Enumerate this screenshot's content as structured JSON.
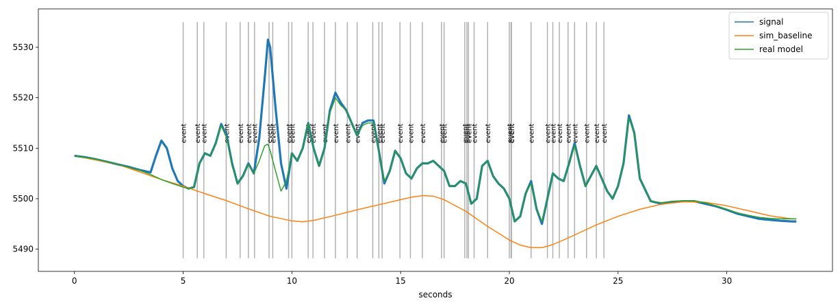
{
  "chart_data": {
    "type": "line",
    "xlabel": "seconds",
    "ylabel": "",
    "xlim": [
      -1.66,
      34.86
    ],
    "ylim": [
      5485.6,
      5537.6
    ],
    "xticks": [
      0,
      5,
      10,
      15,
      20,
      25,
      30
    ],
    "yticks": [
      5490,
      5500,
      5510,
      5520,
      5530
    ],
    "grid": false,
    "legend_position": "top-right",
    "colors": {
      "signal": "#1f77b4",
      "sim_baseline": "#ff7f0e",
      "real model": "#2ca02c",
      "event_line": "#b0b0b0"
    },
    "event_label": "event",
    "event_line_range": [
      5488.2,
      5535.0
    ],
    "event_label_y": 5511.0,
    "events": [
      5.0,
      5.65,
      5.95,
      6.98,
      7.62,
      8.0,
      8.28,
      8.95,
      9.12,
      9.85,
      10.0,
      10.75,
      10.97,
      11.5,
      12.0,
      12.55,
      13.0,
      13.72,
      14.0,
      14.15,
      14.97,
      15.45,
      16.0,
      16.88,
      17.0,
      17.95,
      18.05,
      18.12,
      18.38,
      19.0,
      20.0,
      20.08,
      20.1,
      21.0,
      21.75,
      22.0,
      22.3,
      22.7,
      23.0,
      23.55,
      24.0,
      24.35
    ],
    "series": [
      {
        "name": "signal",
        "x": [
          0.0,
          0.5,
          1.0,
          1.5,
          2.0,
          2.5,
          3.0,
          3.5,
          3.75,
          4.0,
          4.25,
          4.5,
          4.75,
          5.0,
          5.25,
          5.5,
          5.75,
          6.0,
          6.25,
          6.5,
          6.75,
          7.0,
          7.25,
          7.5,
          7.75,
          8.0,
          8.25,
          8.5,
          8.75,
          8.9,
          9.0,
          9.25,
          9.5,
          9.75,
          10.0,
          10.25,
          10.5,
          10.75,
          11.0,
          11.25,
          11.5,
          11.75,
          12.0,
          12.25,
          12.5,
          12.75,
          13.0,
          13.25,
          13.5,
          13.75,
          14.0,
          14.25,
          14.5,
          14.75,
          15.0,
          15.25,
          15.5,
          15.75,
          16.0,
          16.25,
          16.5,
          16.75,
          17.0,
          17.25,
          17.5,
          17.75,
          18.0,
          18.25,
          18.5,
          18.75,
          19.0,
          19.25,
          19.5,
          19.75,
          20.0,
          20.25,
          20.5,
          20.75,
          21.0,
          21.25,
          21.5,
          21.75,
          22.0,
          22.25,
          22.5,
          22.75,
          23.0,
          23.25,
          23.5,
          23.75,
          24.0,
          24.25,
          24.5,
          24.75,
          25.0,
          25.25,
          25.5,
          25.75,
          26.0,
          26.5,
          27.0,
          27.5,
          28.0,
          28.5,
          29.0,
          29.5,
          30.0,
          30.5,
          31.0,
          31.5,
          32.0,
          32.5,
          33.0,
          33.2
        ],
        "values": [
          5508.5,
          5508.2,
          5507.8,
          5507.3,
          5506.8,
          5506.3,
          5505.7,
          5505.2,
          5508.5,
          5511.5,
          5510.0,
          5506.0,
          5503.5,
          5502.5,
          5502.0,
          5502.3,
          5507.0,
          5509.0,
          5508.5,
          5511.0,
          5514.8,
          5512.5,
          5507.0,
          5503.0,
          5504.5,
          5507.0,
          5505.0,
          5512.0,
          5524.0,
          5531.5,
          5530.0,
          5518.0,
          5507.0,
          5502.0,
          5509.0,
          5507.5,
          5510.0,
          5515.0,
          5510.0,
          5506.5,
          5510.0,
          5517.5,
          5521.0,
          5519.0,
          5517.5,
          5515.0,
          5512.5,
          5515.0,
          5515.5,
          5515.5,
          5509.5,
          5503.0,
          5505.5,
          5509.5,
          5508.0,
          5505.0,
          5504.0,
          5506.0,
          5507.0,
          5507.0,
          5507.5,
          5506.5,
          5505.5,
          5502.5,
          5502.5,
          5503.5,
          5503.0,
          5499.0,
          5500.0,
          5506.5,
          5507.5,
          5504.5,
          5503.0,
          5502.0,
          5500.0,
          5495.5,
          5496.5,
          5501.0,
          5503.5,
          5498.0,
          5495.0,
          5500.0,
          5505.0,
          5504.0,
          5503.5,
          5507.0,
          5511.0,
          5506.5,
          5502.5,
          5504.5,
          5506.5,
          5504.0,
          5501.5,
          5500.0,
          5502.5,
          5507.0,
          5516.5,
          5513.0,
          5504.0,
          5499.5,
          5499.0,
          5499.3,
          5499.5,
          5499.5,
          5499.0,
          5498.5,
          5497.8,
          5497.0,
          5496.5,
          5496.0,
          5495.8,
          5495.6,
          5495.5,
          5495.5
        ]
      },
      {
        "name": "sim_baseline",
        "x": [
          0.0,
          2.0,
          4.0,
          5.0,
          6.0,
          7.0,
          8.0,
          9.0,
          10.0,
          10.5,
          11.0,
          12.0,
          13.0,
          14.0,
          15.0,
          15.5,
          16.0,
          16.5,
          17.0,
          18.0,
          19.0,
          20.0,
          20.5,
          21.0,
          21.5,
          22.0,
          23.0,
          24.0,
          25.0,
          26.0,
          27.0,
          28.0,
          29.0,
          30.0,
          31.0,
          32.0,
          33.0,
          33.2
        ],
        "values": [
          5508.5,
          5506.8,
          5503.8,
          5502.5,
          5501.0,
          5499.6,
          5498.0,
          5496.5,
          5495.6,
          5495.4,
          5495.7,
          5496.7,
          5497.8,
          5498.8,
          5499.8,
          5500.3,
          5500.6,
          5500.5,
          5499.8,
          5497.5,
          5494.5,
          5491.8,
          5490.8,
          5490.3,
          5490.3,
          5490.9,
          5492.8,
          5494.8,
          5496.5,
          5497.9,
          5498.9,
          5499.4,
          5499.3,
          5498.6,
          5497.6,
          5496.6,
          5496.0,
          5496.0
        ]
      },
      {
        "name": "real model",
        "x": [
          0.0,
          1.0,
          2.0,
          3.0,
          3.5,
          4.0,
          4.5,
          5.0,
          5.25,
          5.5,
          5.75,
          6.0,
          6.25,
          6.5,
          6.75,
          7.0,
          7.25,
          7.5,
          7.75,
          8.0,
          8.25,
          8.5,
          8.75,
          8.9,
          9.0,
          9.25,
          9.5,
          9.75,
          10.0,
          10.25,
          10.5,
          10.75,
          11.0,
          11.25,
          11.5,
          11.75,
          12.0,
          12.25,
          12.5,
          12.75,
          13.0,
          13.25,
          13.5,
          13.75,
          14.0,
          14.25,
          14.5,
          14.75,
          15.0,
          15.25,
          15.5,
          15.75,
          16.0,
          16.25,
          16.5,
          16.75,
          17.0,
          17.25,
          17.5,
          17.75,
          18.0,
          18.25,
          18.5,
          18.75,
          19.0,
          19.25,
          19.5,
          19.75,
          20.0,
          20.25,
          20.5,
          20.75,
          21.0,
          21.25,
          21.5,
          21.75,
          22.0,
          22.25,
          22.5,
          22.75,
          23.0,
          23.25,
          23.5,
          23.75,
          24.0,
          24.25,
          24.5,
          24.75,
          25.0,
          25.25,
          25.5,
          25.75,
          26.0,
          26.5,
          27.0,
          27.5,
          28.0,
          28.5,
          29.0,
          29.5,
          30.0,
          30.5,
          31.0,
          31.5,
          32.0,
          32.5,
          33.0,
          33.2
        ],
        "values": [
          5508.5,
          5507.8,
          5506.8,
          5505.6,
          5504.8,
          5503.8,
          5503.0,
          5502.3,
          5502.0,
          5502.3,
          5507.0,
          5509.0,
          5508.5,
          5511.0,
          5514.5,
          5512.0,
          5506.5,
          5503.0,
          5504.5,
          5506.8,
          5505.0,
          5507.5,
          5510.5,
          5510.8,
          5509.5,
          5505.5,
          5501.5,
          5503.5,
          5509.0,
          5507.5,
          5510.0,
          5515.0,
          5510.0,
          5506.5,
          5510.0,
          5517.0,
          5520.0,
          5518.5,
          5517.5,
          5515.0,
          5512.5,
          5514.5,
          5515.0,
          5515.0,
          5509.5,
          5503.5,
          5505.5,
          5509.5,
          5508.0,
          5505.0,
          5504.0,
          5506.0,
          5507.0,
          5507.0,
          5507.5,
          5506.5,
          5505.5,
          5502.5,
          5502.5,
          5503.5,
          5503.0,
          5499.0,
          5500.0,
          5506.5,
          5507.5,
          5504.5,
          5503.0,
          5502.0,
          5500.0,
          5495.5,
          5496.5,
          5501.0,
          5503.0,
          5498.0,
          5495.5,
          5500.0,
          5505.0,
          5504.0,
          5503.5,
          5507.0,
          5510.5,
          5506.5,
          5502.5,
          5504.5,
          5506.5,
          5504.0,
          5501.5,
          5500.0,
          5502.5,
          5507.0,
          5516.0,
          5513.0,
          5504.0,
          5499.5,
          5499.2,
          5499.5,
          5499.6,
          5499.6,
          5499.2,
          5498.6,
          5497.9,
          5497.2,
          5496.7,
          5496.3,
          5496.1,
          5496.0,
          5496.0,
          5496.0
        ]
      }
    ]
  }
}
